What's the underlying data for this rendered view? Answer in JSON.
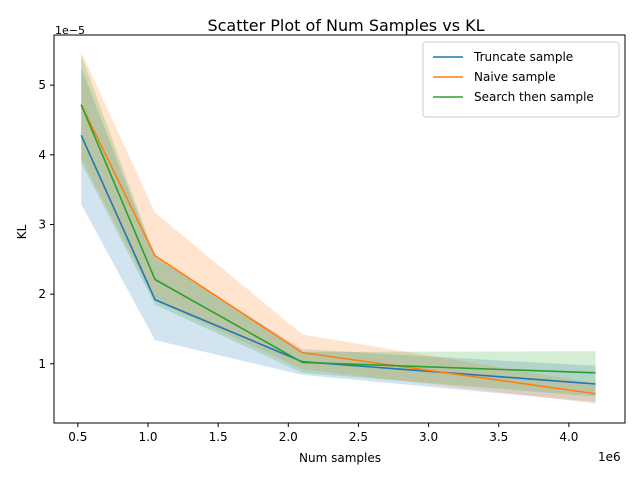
{
  "chart_data": {
    "type": "line",
    "title": "Scatter Plot of Num Samples vs KL",
    "xlabel": "Num samples",
    "ylabel": "KL",
    "x_offset_label": "1e6",
    "y_offset_label": "1e−5",
    "xlim": [
      0.33,
      4.4
    ],
    "ylim": [
      0.15,
      5.72
    ],
    "x_ticks": [
      0.5,
      1.0,
      1.5,
      2.0,
      2.5,
      3.0,
      3.5,
      4.0
    ],
    "x_tick_labels": [
      "0.5",
      "1.0",
      "1.5",
      "2.0",
      "2.5",
      "3.0",
      "3.5",
      "4.0"
    ],
    "y_ticks": [
      1,
      2,
      3,
      4,
      5
    ],
    "y_tick_labels": [
      "1",
      "2",
      "3",
      "4",
      "5"
    ],
    "x": [
      0.524,
      1.05,
      2.1,
      4.19
    ],
    "legend_position": "top-right",
    "grid": false,
    "series": [
      {
        "name": "Truncate sample",
        "color": "#1f77b4",
        "values": [
          4.28,
          1.92,
          1.03,
          0.71
        ],
        "lower": [
          3.29,
          1.34,
          0.84,
          0.45
        ],
        "upper": [
          5.25,
          2.52,
          1.21,
          0.97
        ]
      },
      {
        "name": "Naive sample",
        "color": "#ff7f0e",
        "values": [
          4.72,
          2.55,
          1.16,
          0.57
        ],
        "lower": [
          3.95,
          1.91,
          0.92,
          0.43
        ],
        "upper": [
          5.48,
          3.17,
          1.42,
          0.72
        ]
      },
      {
        "name": "Search then sample",
        "color": "#2ca02c",
        "values": [
          4.72,
          2.21,
          1.02,
          0.87
        ],
        "lower": [
          3.88,
          1.85,
          0.87,
          0.53
        ],
        "upper": [
          5.43,
          2.55,
          1.17,
          1.18
        ]
      }
    ]
  }
}
